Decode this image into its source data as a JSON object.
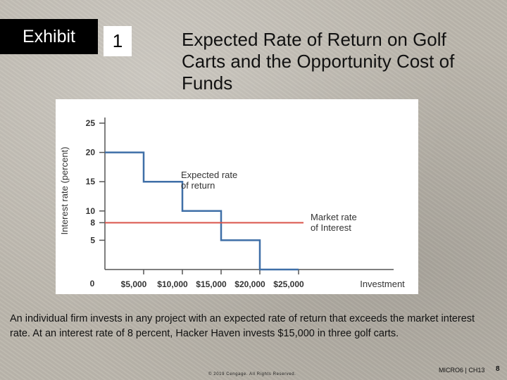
{
  "header": {
    "exhibit_label": "Exhibit",
    "exhibit_number": "1",
    "title": "Expected Rate of Return on Golf Carts and the Opportunity Cost of Funds"
  },
  "chart_data": {
    "type": "line",
    "title": "",
    "xlabel": "Investment",
    "ylabel": "Interest rate (percent)",
    "x_ticks": [
      "$5,000",
      "$10,000",
      "$15,000",
      "$20,000",
      "$25,000"
    ],
    "x_tick_values": [
      5000,
      10000,
      15000,
      20000,
      25000
    ],
    "y_ticks": [
      0,
      5,
      8,
      10,
      15,
      20,
      25
    ],
    "ylim": [
      0,
      25
    ],
    "xlim": [
      0,
      25000
    ],
    "grid": false,
    "series": [
      {
        "name": "Expected rate of return",
        "label": "Expected rate\nof return",
        "step": true,
        "color": "#3f6fa7",
        "x": [
          0,
          5000,
          5000,
          10000,
          10000,
          15000,
          15000,
          20000,
          20000,
          25000
        ],
        "y": [
          20,
          20,
          15,
          15,
          10,
          10,
          5,
          5,
          0,
          0
        ]
      },
      {
        "name": "Market rate of Interest",
        "label": "Market rate\nof Interest",
        "color": "#d9534a",
        "x": [
          0,
          25000
        ],
        "y": [
          8,
          8
        ]
      }
    ]
  },
  "caption": "An individual firm invests in any project with an expected rate of return that exceeds the market interest rate. At an interest rate of 8 percent, Hacker Haven invests $15,000 in three golf carts.",
  "footer": {
    "copyright": "© 2019 Cengage. All Rights Reserved.",
    "course_code": "MICRO6 | CH13",
    "page_number": "8"
  },
  "colors": {
    "axis": "#555555",
    "text": "#333333",
    "step_line": "#3f6fa7",
    "market_line": "#d9534a"
  }
}
